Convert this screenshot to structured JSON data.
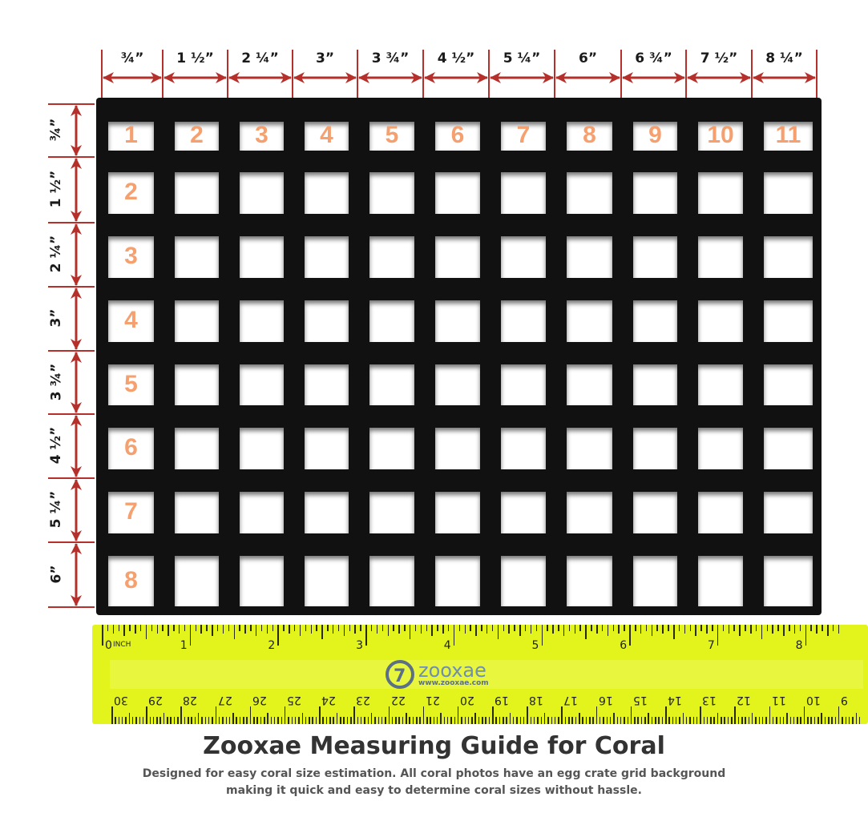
{
  "column_labels": [
    "¾”",
    "1 ½”",
    "2 ¼”",
    "3”",
    "3 ¾”",
    "4 ½”",
    "5 ¼”",
    "6”",
    "6 ¾”",
    "7 ½”",
    "8 ¼”"
  ],
  "row_labels": [
    "¾”",
    "1 ½”",
    "2 ¼”",
    "3”",
    "3 ¾”",
    "4 ½”",
    "5 ¼”",
    "6”"
  ],
  "column_numbers": [
    "1",
    "2",
    "3",
    "4",
    "5",
    "6",
    "7",
    "8",
    "9",
    "10",
    "11"
  ],
  "row_numbers": [
    "1",
    "2",
    "3",
    "4",
    "5",
    "6",
    "7",
    "8"
  ],
  "ruler": {
    "inch_label": "INCH",
    "inch_numbers": [
      "0",
      "1",
      "2",
      "3",
      "4",
      "5",
      "6",
      "7",
      "8"
    ],
    "cm_numbers": [
      "30",
      "29",
      "28",
      "27",
      "26",
      "25",
      "24",
      "23",
      "22",
      "21",
      "20",
      "19",
      "18",
      "17",
      "16",
      "15",
      "14",
      "13",
      "12",
      "11",
      "10",
      "9"
    ],
    "brand": "zooxae",
    "url": "www.zooxae.com",
    "color": "#e2f41c"
  },
  "colors": {
    "arrow": "#b5302a",
    "number": "#f5a06e",
    "grid": "#111111"
  },
  "title": "Zooxae Measuring Guide for Coral",
  "subtitle": "Designed for easy coral size estimation. All coral photos have an egg crate grid background making it quick and easy to determine coral sizes without hassle."
}
